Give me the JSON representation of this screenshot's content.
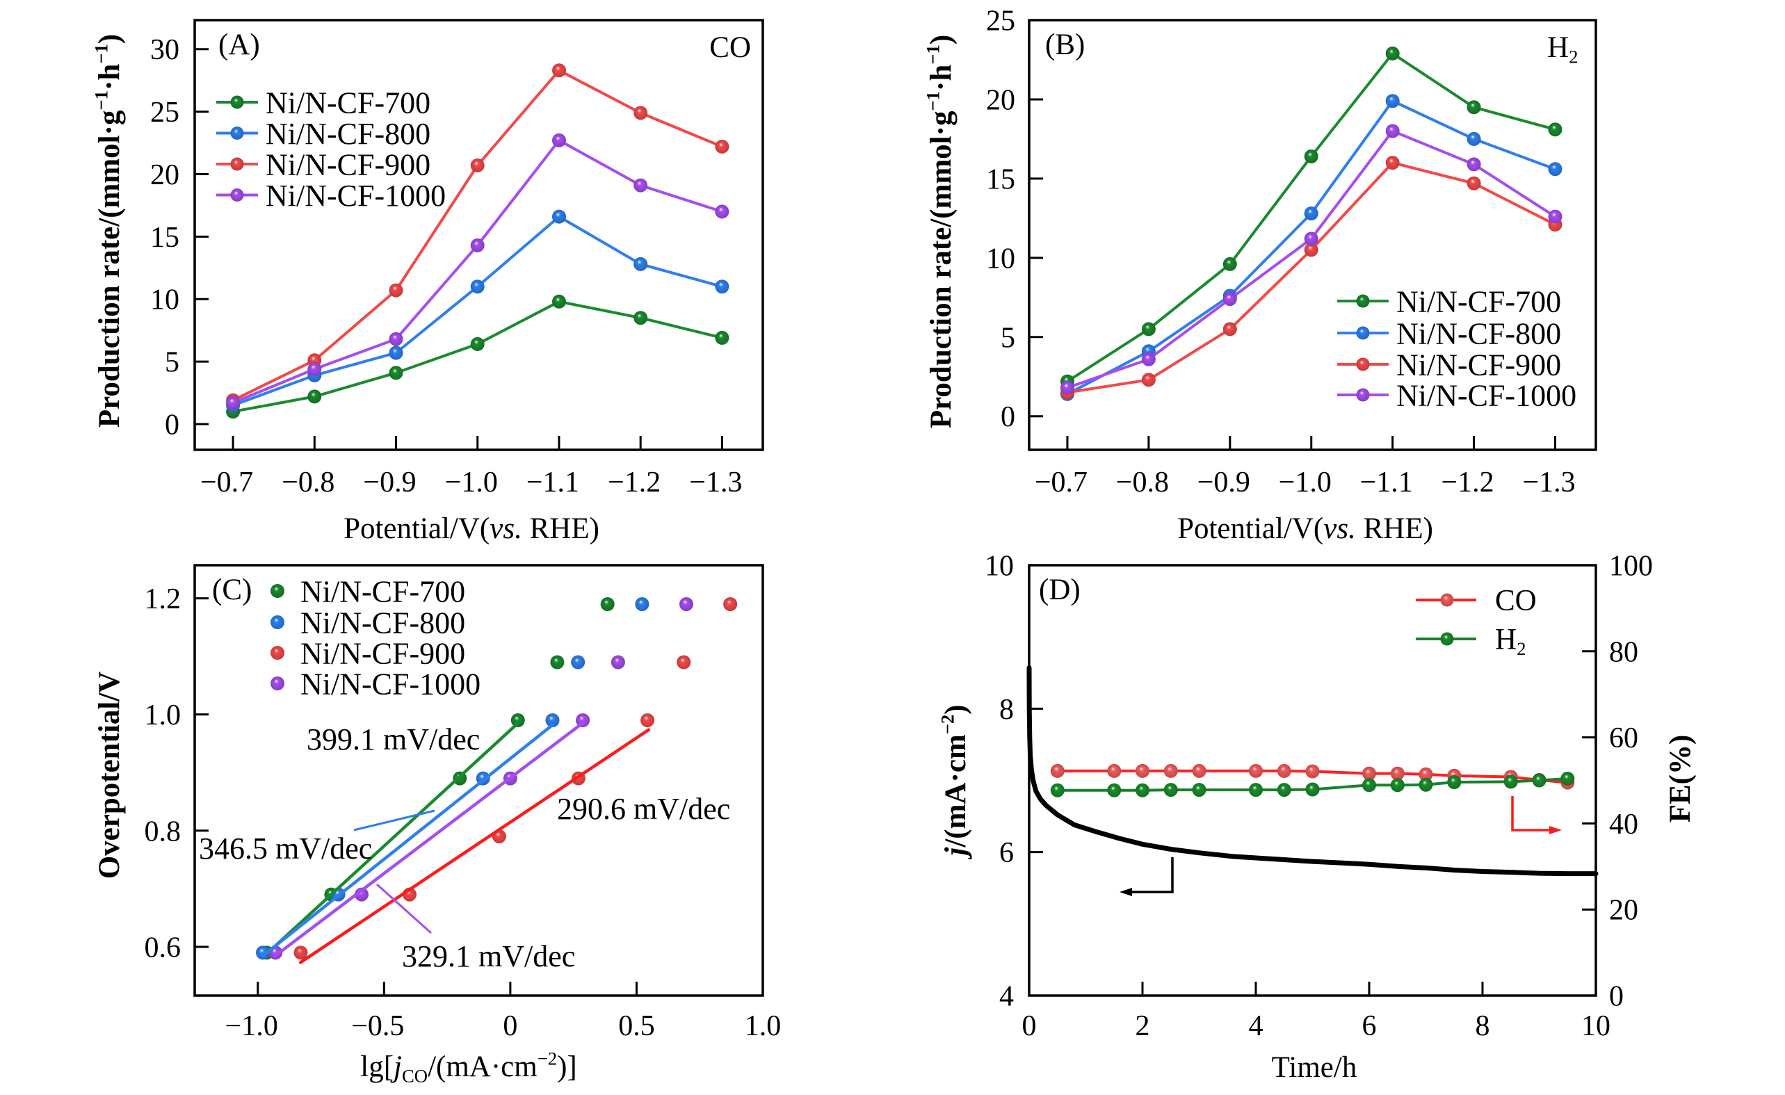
{
  "figure": {
    "background": "#ffffff"
  },
  "chart_data": [
    {
      "panel": "A",
      "panel_label": "(A)",
      "type": "line",
      "title_parts": [
        {
          "t": "CO"
        }
      ],
      "xlabel_parts": [
        {
          "t": "Potential/V("
        },
        {
          "t": "vs.",
          "s": "i"
        },
        {
          "t": " RHE)"
        }
      ],
      "ylabel_parts": [
        {
          "t": "Production rate/(mmol·g"
        },
        {
          "t": "−1",
          "s": "sup"
        },
        {
          "t": "·h"
        },
        {
          "t": "−1",
          "s": "sup"
        },
        {
          "t": ")"
        }
      ],
      "x": [
        -0.7,
        -0.8,
        -0.9,
        -1.0,
        -1.1,
        -1.2,
        -1.3
      ],
      "xlim": [
        -0.653,
        -1.35
      ],
      "xticks": [
        -0.7,
        -0.8,
        -0.9,
        -1.0,
        -1.1,
        -1.2,
        -1.3
      ],
      "xtick_labels": [
        "−0.7",
        "−0.8",
        "−0.9",
        "−1.0",
        "−1.1",
        "−1.2",
        "−1.3"
      ],
      "ylim": [
        -2.06,
        32.32
      ],
      "yticks": [
        0,
        5,
        10,
        15,
        20,
        25,
        30
      ],
      "ytick_labels": [
        "0",
        "5",
        "10",
        "15",
        "20",
        "25",
        "30"
      ],
      "grid": false,
      "legend": {
        "placement": "upper-left"
      },
      "series": [
        {
          "name": "Ni/N-CF-700",
          "color": "#1a8a2e",
          "values": [
            1.0,
            2.2,
            4.1,
            6.4,
            9.8,
            8.5,
            6.9
          ]
        },
        {
          "name": "Ni/N-CF-800",
          "color": "#2d7ff0",
          "values": [
            1.5,
            3.9,
            5.7,
            11.0,
            16.6,
            12.8,
            11.0
          ]
        },
        {
          "name": "Ni/N-CF-900",
          "color": "#f44848",
          "values": [
            1.9,
            5.1,
            10.7,
            20.7,
            28.3,
            24.9,
            22.2
          ]
        },
        {
          "name": "Ni/N-CF-1000",
          "color": "#a64cf0",
          "values": [
            1.7,
            4.4,
            6.8,
            14.3,
            22.7,
            19.1,
            17.0
          ]
        }
      ]
    },
    {
      "panel": "B",
      "panel_label": "(B)",
      "type": "line",
      "title_parts": [
        {
          "t": "H"
        },
        {
          "t": "2",
          "s": "sub"
        }
      ],
      "xlabel_parts": [
        {
          "t": "Potential/V("
        },
        {
          "t": "vs.",
          "s": "i"
        },
        {
          "t": " RHE)"
        }
      ],
      "ylabel_parts": [
        {
          "t": "Production rate/(mmol·g"
        },
        {
          "t": "−1",
          "s": "sup"
        },
        {
          "t": "·h"
        },
        {
          "t": "−1",
          "s": "sup"
        },
        {
          "t": ")"
        }
      ],
      "x": [
        -0.7,
        -0.8,
        -0.9,
        -1.0,
        -1.1,
        -1.2,
        -1.3
      ],
      "xlim": [
        -0.653,
        -1.35
      ],
      "xticks": [
        -0.7,
        -0.8,
        -0.9,
        -1.0,
        -1.1,
        -1.2,
        -1.3
      ],
      "xtick_labels": [
        "−0.7",
        "−0.8",
        "−0.9",
        "−1.0",
        "−1.1",
        "−1.2",
        "−1.3"
      ],
      "ylim": [
        -2.12,
        25.0
      ],
      "yticks": [
        0,
        5,
        10,
        15,
        20,
        25
      ],
      "ytick_labels": [
        "0",
        "5",
        "10",
        "15",
        "20",
        "25"
      ],
      "grid": false,
      "legend": {
        "placement": "lower-right"
      },
      "series": [
        {
          "name": "Ni/N-CF-700",
          "color": "#1a8a2e",
          "values": [
            2.2,
            5.5,
            9.6,
            16.4,
            22.9,
            19.5,
            18.1
          ]
        },
        {
          "name": "Ni/N-CF-800",
          "color": "#2d7ff0",
          "values": [
            1.4,
            4.1,
            7.6,
            12.8,
            19.9,
            17.5,
            15.6
          ]
        },
        {
          "name": "Ni/N-CF-900",
          "color": "#f44848",
          "values": [
            1.5,
            2.3,
            5.5,
            10.5,
            16.0,
            14.7,
            12.1
          ]
        },
        {
          "name": "Ni/N-CF-1000",
          "color": "#a64cf0",
          "values": [
            1.8,
            3.6,
            7.4,
            11.2,
            18.0,
            15.9,
            12.6
          ]
        }
      ]
    },
    {
      "panel": "C",
      "panel_label": "(C)",
      "type": "scatter",
      "xlabel_parts": [
        {
          "t": "lg["
        },
        {
          "t": "j",
          "s": "i"
        },
        {
          "t": "CO",
          "s": "sub"
        },
        {
          "t": "/(mA·cm"
        },
        {
          "t": "−2",
          "s": "sup"
        },
        {
          "t": ")]"
        }
      ],
      "ylabel_parts": [
        {
          "t": "Overpotential/V"
        }
      ],
      "xlim": [
        -1.25,
        1.0
      ],
      "xticks": [
        -1.0,
        -0.5,
        0,
        0.5,
        1.0
      ],
      "xtick_labels": [
        "−1.0",
        "−0.5",
        "0",
        "0.5",
        "1.0"
      ],
      "ylim": [
        0.516,
        1.257
      ],
      "yticks": [
        0.6,
        0.8,
        1.0,
        1.2
      ],
      "ytick_labels": [
        "0.6",
        "0.8",
        "1.0",
        "1.2"
      ],
      "grid": false,
      "legend": {
        "placement": "upper-left"
      },
      "series": [
        {
          "name": "Ni/N-CF-700",
          "color": "#1a8a2e",
          "points": [
            [
              -0.965,
              0.59
            ],
            [
              -0.709,
              0.69
            ],
            [
              -0.2,
              0.89
            ],
            [
              0.03,
              0.99
            ],
            [
              0.186,
              1.09
            ],
            [
              0.385,
              1.19
            ]
          ],
          "fit": {
            "label": "399.1 mV/dec",
            "slope_mV_per_dec": 399.1,
            "intercept_V": 0.973,
            "x_range": [
              -0.966,
              0.027
            ],
            "color": "#1a8a2e"
          }
        },
        {
          "name": "Ni/N-CF-800",
          "color": "#2d7ff0",
          "points": [
            [
              -0.98,
              0.59
            ],
            [
              -0.681,
              0.69
            ],
            [
              -0.108,
              0.89
            ],
            [
              0.167,
              0.99
            ],
            [
              0.268,
              1.09
            ],
            [
              0.522,
              1.19
            ]
          ],
          "fit": {
            "label": "346.5 mV/dec",
            "slope_mV_per_dec": 346.5,
            "intercept_V": 0.924,
            "x_range": [
              -0.982,
              0.167
            ],
            "color": "#2d7ff0"
          }
        },
        {
          "name": "Ni/N-CF-900",
          "color": "#f44848",
          "points": [
            [
              -0.83,
              0.59
            ],
            [
              -0.399,
              0.69
            ],
            [
              -0.044,
              0.79
            ],
            [
              0.27,
              0.89
            ],
            [
              0.543,
              0.99
            ],
            [
              0.687,
              1.09
            ],
            [
              0.871,
              1.19
            ]
          ],
          "fit": {
            "label": "290.6 mV/dec",
            "slope_mV_per_dec": 290.6,
            "intercept_V": 0.8145,
            "x_range": [
              -0.831,
              0.548
            ],
            "color": "#ff1a1a"
          }
        },
        {
          "name": "Ni/N-CF-1000",
          "color": "#a64cf0",
          "points": [
            [
              -0.93,
              0.59
            ],
            [
              -0.589,
              0.69
            ],
            [
              0.0,
              0.89
            ],
            [
              0.287,
              0.99
            ],
            [
              0.427,
              1.09
            ],
            [
              0.697,
              1.19
            ]
          ],
          "fit": {
            "label": "329.1 mV/dec",
            "slope_mV_per_dec": 329.1,
            "intercept_V": 0.891,
            "x_range": [
              -0.932,
              0.288
            ],
            "color": "#a64cf0"
          }
        }
      ]
    },
    {
      "panel": "D",
      "panel_label": "(D)",
      "type": "line",
      "xlabel_parts": [
        {
          "t": "Time/h"
        }
      ],
      "ylabel_left_parts": [
        {
          "t": "j",
          "s": "i"
        },
        {
          "t": "/(mA·cm"
        },
        {
          "t": "−2",
          "s": "sup"
        },
        {
          "t": ")"
        }
      ],
      "ylabel_right_parts": [
        {
          "t": "FE(%)"
        }
      ],
      "xlim": [
        0,
        10
      ],
      "xticks": [
        0,
        2,
        4,
        6,
        8,
        10
      ],
      "xtick_labels": [
        "0",
        "2",
        "4",
        "6",
        "8",
        "10"
      ],
      "ylim_left": [
        4,
        10
      ],
      "yticks_left": [
        4,
        6,
        8,
        10
      ],
      "ytick_labels_left": [
        "4",
        "6",
        "8",
        "10"
      ],
      "ylim_right": [
        0,
        100
      ],
      "yticks_right": [
        0,
        20,
        40,
        60,
        80,
        100
      ],
      "ytick_labels_right": [
        "0",
        "20",
        "40",
        "60",
        "80",
        "100"
      ],
      "grid": false,
      "legend": {
        "placement": "top-right"
      },
      "current_density": {
        "axis": "left",
        "color": "#000000",
        "t": [
          0,
          0.003,
          0.01,
          0.02,
          0.04,
          0.07,
          0.12,
          0.2,
          0.3,
          0.5,
          0.8,
          1.2,
          1.6,
          2.0,
          2.5,
          3.0,
          3.6,
          4.2,
          5.0,
          5.5,
          6.0,
          6.5,
          7.0,
          7.5,
          8.0,
          8.5,
          9.0,
          9.5,
          10.0
        ],
        "j": [
          8.57,
          8.0,
          7.6,
          7.35,
          7.15,
          7.0,
          6.85,
          6.74,
          6.65,
          6.52,
          6.38,
          6.28,
          6.19,
          6.11,
          6.04,
          5.99,
          5.94,
          5.91,
          5.87,
          5.85,
          5.83,
          5.8,
          5.78,
          5.75,
          5.73,
          5.72,
          5.705,
          5.7,
          5.7
        ]
      },
      "faradaic_efficiency": [
        {
          "name": "CO",
          "label_parts": [
            {
              "t": "CO"
            }
          ],
          "axis": "right",
          "color": "#ff2020",
          "marker_color": "#f25a5a",
          "t": [
            0.5,
            1.5,
            2,
            2.5,
            3,
            4,
            4.5,
            5,
            6,
            6.5,
            7,
            7.5,
            8.5,
            9,
            9.5
          ],
          "values": [
            52.2,
            52.2,
            52.2,
            52.2,
            52.2,
            52.2,
            52.2,
            52.1,
            51.6,
            51.6,
            51.4,
            51.1,
            50.8,
            50.1,
            49.5
          ]
        },
        {
          "name": "H₂",
          "label_parts": [
            {
              "t": "H"
            },
            {
              "t": "2",
              "s": "sub"
            }
          ],
          "axis": "right",
          "color": "#17822a",
          "marker_color": "#1a8c2c",
          "t": [
            0.5,
            1.5,
            2,
            2.5,
            3,
            4,
            4.5,
            5,
            6,
            6.5,
            7,
            7.5,
            8.5,
            9,
            9.5
          ],
          "values": [
            47.7,
            47.7,
            47.7,
            47.8,
            47.8,
            47.8,
            47.8,
            47.9,
            48.9,
            48.9,
            49.0,
            49.6,
            49.7,
            50.0,
            50.4
          ]
        }
      ],
      "axis_indicators": [
        {
          "series": "current_density",
          "points_to": "left",
          "color": "#000000"
        },
        {
          "series": "faradaic_efficiency",
          "points_to": "right",
          "color": "#ff1a1a"
        }
      ]
    }
  ]
}
